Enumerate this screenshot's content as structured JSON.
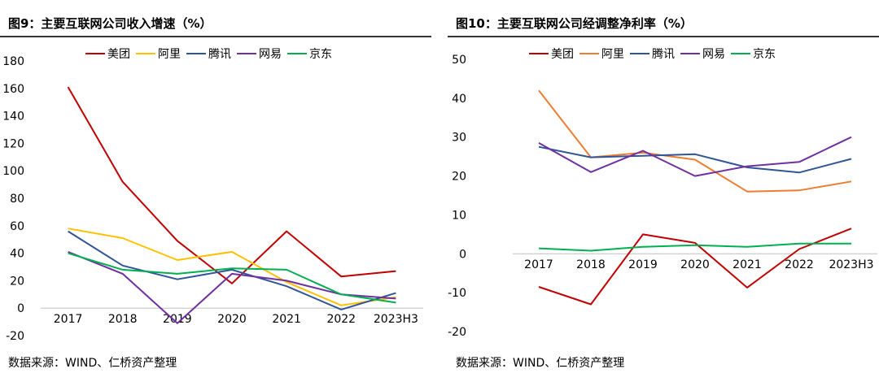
{
  "chart_data": [
    {
      "type": "line",
      "title": "图9：主要互联网公司收入增速（%）",
      "source": "数据来源：WIND、仁桥资产整理",
      "categories": [
        "2017",
        "2018",
        "2019",
        "2020",
        "2021",
        "2022",
        "2023H3"
      ],
      "series": [
        {
          "name": "美团",
          "color": "#C00000",
          "values": [
            161,
            92,
            49,
            18,
            56,
            23,
            27
          ]
        },
        {
          "name": "阿里",
          "color": "#FFC000",
          "values": [
            58,
            51,
            35,
            41,
            19,
            2,
            8
          ]
        },
        {
          "name": "腾讯",
          "color": "#2F5597",
          "values": [
            56,
            31,
            21,
            28,
            16,
            -1,
            11
          ]
        },
        {
          "name": "网易",
          "color": "#7030A0",
          "values": [
            41,
            25,
            -11,
            25,
            20,
            10,
            7
          ]
        },
        {
          "name": "京东",
          "color": "#00B050",
          "values": [
            40,
            28,
            25,
            29,
            28,
            10,
            4
          ]
        }
      ],
      "ylim": [
        -20,
        180
      ],
      "yticks": [
        "-20",
        "0",
        "20",
        "40",
        "60",
        "80",
        "100",
        "120",
        "140",
        "160",
        "180"
      ],
      "xlabel": "",
      "ylabel": "",
      "legend": "top"
    },
    {
      "type": "line",
      "title": "图10：主要互联网公司经调整净利率（%）",
      "source": "数据来源：WIND、仁桥资产整理",
      "categories": [
        "2017",
        "2018",
        "2019",
        "2020",
        "2021",
        "2022",
        "2023H3"
      ],
      "series": [
        {
          "name": "美团",
          "color": "#C00000",
          "values": [
            -8.5,
            -13,
            5,
            2.8,
            -8.7,
            1.2,
            6.5
          ]
        },
        {
          "name": "阿里",
          "color": "#ED7D31",
          "values": [
            42,
            24.8,
            26,
            24.2,
            16,
            16.3,
            18.6
          ]
        },
        {
          "name": "腾讯",
          "color": "#2F5597",
          "values": [
            27.5,
            24.8,
            25.2,
            25.6,
            22.2,
            20.9,
            24.4
          ]
        },
        {
          "name": "网易",
          "color": "#7030A0",
          "values": [
            28.5,
            21,
            26.5,
            20,
            22.5,
            23.6,
            30
          ]
        },
        {
          "name": "京东",
          "color": "#00B050",
          "values": [
            1.4,
            0.8,
            1.8,
            2.2,
            1.8,
            2.6,
            2.6
          ]
        }
      ],
      "ylim": [
        -20,
        50
      ],
      "yticks": [
        "-20",
        "-10",
        "0",
        "10",
        "20",
        "30",
        "40",
        "50"
      ],
      "xlabel": "",
      "ylabel": "",
      "legend": "top"
    }
  ]
}
